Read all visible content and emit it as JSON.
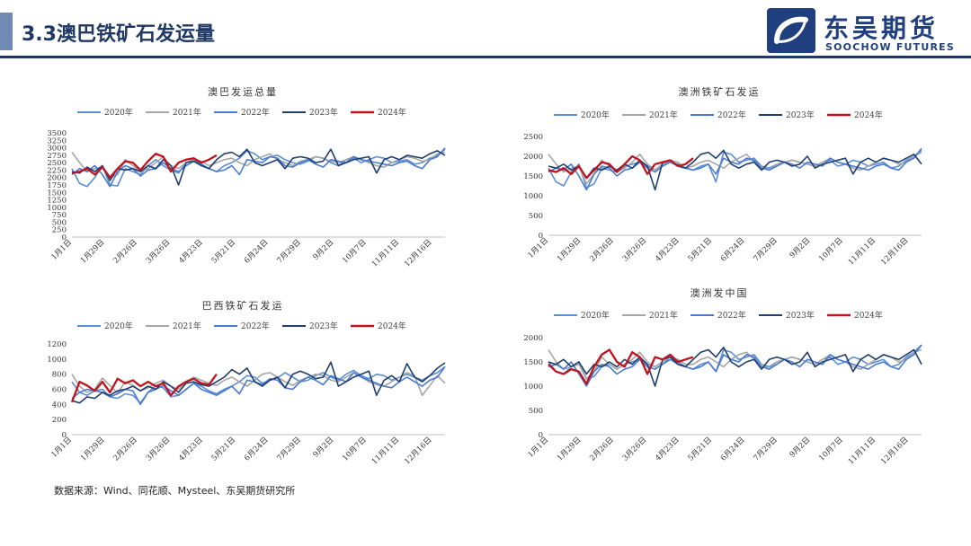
{
  "page": {
    "title": "3.3澳巴铁矿石发运量",
    "source": "数据来源：Wind、同花顺、Mysteel、东吴期货研究所"
  },
  "logo": {
    "name_cn": "东吴期货",
    "name_en": "SOOCHOW FUTURES",
    "color": "#1f3f7f"
  },
  "theme": {
    "accent": "#1f3864",
    "series_colors": {
      "2020年": "#5b8fd6",
      "2021年": "#a6a6a6",
      "2022年": "#4a7bd0",
      "2023年": "#1f3f6e",
      "2024年": "#c0141e"
    }
  },
  "chart_data": [
    {
      "type": "line",
      "title": "澳巴发运总量",
      "x_tick_labels": [
        "1月1日",
        "1月29日",
        "2月26日",
        "3月26日",
        "4月23日",
        "5月21日",
        "6月24日",
        "7月29日",
        "9月2日",
        "10月7日",
        "11月11日",
        "12月16日"
      ],
      "ylim": [
        0,
        3500
      ],
      "yticks": [
        0,
        250,
        500,
        750,
        1000,
        1250,
        1500,
        1750,
        2000,
        2250,
        2500,
        2750,
        3000,
        3250,
        3500
      ],
      "legend_position": "top",
      "series": [
        {
          "name": "2020年",
          "values": [
            2300,
            1800,
            1700,
            2000,
            2400,
            1750,
            1720,
            2300,
            2200,
            2100,
            2400,
            2600,
            2400,
            2250,
            2150,
            2500,
            2600,
            2450,
            2300,
            2200,
            2400,
            2500,
            2650,
            2900,
            2800,
            2600,
            2700,
            2750,
            2600,
            2500,
            2450,
            2550,
            2700,
            2650,
            2500,
            2400,
            2600,
            2650,
            2500,
            2600,
            2700,
            2650,
            2500,
            2550,
            2600,
            2450,
            2500,
            2650,
            2750,
            2950
          ]
        },
        {
          "name": "2021年",
          "values": [
            2850,
            2500,
            2200,
            2300,
            2350,
            2000,
            2100,
            2600,
            2400,
            2200,
            2300,
            2500,
            2700,
            2400,
            2300,
            2500,
            2600,
            2550,
            2400,
            2500,
            2600,
            2650,
            2500,
            2400,
            2600,
            2700,
            2800,
            2600,
            2500,
            2400,
            2550,
            2600,
            2700,
            2650,
            2550,
            2500,
            2600,
            2700,
            2600,
            2500,
            2400,
            2350,
            2500,
            2600,
            2700,
            2650,
            2550,
            2600,
            2800,
            2850
          ]
        },
        {
          "name": "2022年",
          "values": [
            2100,
            2300,
            2200,
            2400,
            2100,
            1700,
            2200,
            2400,
            2300,
            2050,
            2250,
            2300,
            2500,
            2300,
            2200,
            2400,
            2550,
            2450,
            2300,
            2200,
            2250,
            2400,
            2100,
            2600,
            2550,
            2500,
            2700,
            2650,
            2400,
            2350,
            2500,
            2600,
            2450,
            2350,
            2600,
            2550,
            2500,
            2700,
            2600,
            2550,
            2500,
            2450,
            2400,
            2500,
            2550,
            2400,
            2300,
            2600,
            2700,
            3000
          ]
        },
        {
          "name": "2023年",
          "values": [
            2200,
            2150,
            2350,
            2200,
            2400,
            1900,
            2300,
            2250,
            2300,
            2200,
            2400,
            2300,
            2600,
            2400,
            1750,
            2500,
            2550,
            2400,
            2300,
            2600,
            2800,
            2850,
            2700,
            2950,
            2500,
            2400,
            2500,
            2600,
            2300,
            2650,
            2700,
            2650,
            2500,
            2550,
            2950,
            2400,
            2500,
            2600,
            2650,
            2700,
            2150,
            2600,
            2700,
            2600,
            2750,
            2700,
            2650,
            2800,
            2900,
            2750
          ]
        },
        {
          "name": "2024年",
          "values": [
            2150,
            2200,
            2300,
            2100,
            2350,
            2000,
            2300,
            2550,
            2500,
            2250,
            2550,
            2800,
            2700,
            2200,
            2500,
            2600,
            2650,
            2500,
            2600,
            2750
          ]
        }
      ]
    },
    {
      "type": "line",
      "title": "澳洲铁矿石发运",
      "x_tick_labels": [
        "1月1日",
        "1月29日",
        "2月26日",
        "3月26日",
        "4月23日",
        "5月21日",
        "6月24日",
        "7月29日",
        "9月2日",
        "10月7日",
        "11月11日",
        "12月16日"
      ],
      "ylim": [
        0,
        2500
      ],
      "yticks": [
        0,
        500,
        1000,
        1500,
        2000,
        2500
      ],
      "legend_position": "top",
      "series": [
        {
          "name": "2020年",
          "values": [
            1700,
            1350,
            1250,
            1600,
            1800,
            1200,
            1300,
            1700,
            1650,
            1600,
            1750,
            1800,
            1850,
            1750,
            1650,
            1800,
            1850,
            1750,
            1700,
            1650,
            1750,
            1800,
            1350,
            2100,
            2050,
            1850,
            1900,
            1950,
            1750,
            1700,
            1800,
            1850,
            1900,
            1850,
            1800,
            1750,
            1850,
            1900,
            1750,
            1800,
            1900,
            1850,
            1750,
            1800,
            1850,
            1700,
            1750,
            1900,
            2000,
            2150
          ]
        },
        {
          "name": "2021年",
          "values": [
            2050,
            1800,
            1600,
            1700,
            1750,
            1300,
            1550,
            1900,
            1750,
            1600,
            1700,
            1850,
            2050,
            1800,
            1650,
            1800,
            1900,
            1850,
            1700,
            1750,
            1850,
            1900,
            1800,
            1700,
            1850,
            1950,
            2050,
            1850,
            1750,
            1650,
            1800,
            1850,
            1900,
            1850,
            1800,
            1750,
            1850,
            1950,
            1850,
            1800,
            1700,
            1650,
            1750,
            1850,
            1950,
            1900,
            1800,
            1850,
            2000,
            2100
          ]
        },
        {
          "name": "2022年",
          "values": [
            1600,
            1700,
            1650,
            1800,
            1500,
            1150,
            1550,
            1750,
            1700,
            1500,
            1650,
            1700,
            1850,
            1700,
            1600,
            1750,
            1850,
            1800,
            1700,
            1650,
            1700,
            1800,
            1550,
            1950,
            1850,
            1800,
            1950,
            1900,
            1700,
            1650,
            1750,
            1850,
            1800,
            1700,
            1850,
            1800,
            1750,
            1950,
            1850,
            1800,
            1750,
            1700,
            1650,
            1750,
            1800,
            1700,
            1650,
            1850,
            1950,
            2200
          ]
        },
        {
          "name": "2023年",
          "values": [
            1750,
            1700,
            1800,
            1650,
            1750,
            1450,
            1700,
            1650,
            1750,
            1650,
            1800,
            1700,
            1900,
            1750,
            1150,
            1850,
            1900,
            1750,
            1700,
            1850,
            2050,
            2100,
            1950,
            2150,
            1800,
            1700,
            1800,
            1850,
            1650,
            1850,
            1900,
            1850,
            1750,
            1800,
            2000,
            1700,
            1800,
            1850,
            1900,
            1950,
            1550,
            1850,
            1950,
            1850,
            1950,
            1900,
            1850,
            1950,
            2050,
            1800
          ]
        },
        {
          "name": "2024年",
          "values": [
            1650,
            1600,
            1700,
            1550,
            1750,
            1450,
            1650,
            1850,
            1800,
            1600,
            1800,
            2000,
            1900,
            1550,
            1800,
            1850,
            1900,
            1750,
            1800,
            1950
          ]
        }
      ]
    },
    {
      "type": "line",
      "title": "巴西铁矿石发运",
      "x_tick_labels": [
        "1月1日",
        "1月29日",
        "2月26日",
        "3月26日",
        "4月23日",
        "5月21日",
        "6月24日",
        "7月29日",
        "9月2日",
        "10月7日",
        "11月11日",
        "12月16日"
      ],
      "ylim": [
        0,
        1200
      ],
      "yticks": [
        0,
        200,
        400,
        600,
        800,
        1000,
        1200
      ],
      "legend_position": "top",
      "series": [
        {
          "name": "2020年",
          "values": [
            700,
            560,
            520,
            580,
            600,
            500,
            480,
            540,
            520,
            420,
            560,
            650,
            620,
            500,
            520,
            600,
            680,
            640,
            580,
            540,
            600,
            640,
            700,
            780,
            760,
            680,
            720,
            750,
            820,
            760,
            700,
            720,
            780,
            820,
            760,
            720,
            800,
            850,
            780,
            740,
            800,
            780,
            720,
            760,
            800,
            760,
            720,
            780,
            820,
            900
          ]
        },
        {
          "name": "2021年",
          "values": [
            800,
            640,
            560,
            600,
            750,
            650,
            550,
            700,
            650,
            580,
            620,
            680,
            720,
            640,
            600,
            700,
            760,
            720,
            680,
            650,
            720,
            760,
            700,
            640,
            720,
            800,
            820,
            760,
            700,
            650,
            720,
            760,
            800,
            780,
            720,
            700,
            760,
            820,
            760,
            700,
            660,
            640,
            700,
            760,
            820,
            780,
            520,
            650,
            780,
            680
          ]
        },
        {
          "name": "2022年",
          "values": [
            480,
            560,
            600,
            580,
            560,
            500,
            540,
            600,
            580,
            400,
            560,
            600,
            650,
            580,
            520,
            600,
            680,
            600,
            560,
            520,
            580,
            640,
            540,
            720,
            700,
            660,
            740,
            720,
            620,
            600,
            700,
            760,
            720,
            660,
            780,
            740,
            700,
            820,
            760,
            720,
            680,
            640,
            620,
            700,
            760,
            700,
            640,
            720,
            760,
            900
          ]
        },
        {
          "name": "2023年",
          "values": [
            450,
            420,
            500,
            480,
            560,
            520,
            580,
            600,
            640,
            580,
            640,
            600,
            700,
            640,
            560,
            680,
            700,
            660,
            640,
            700,
            760,
            860,
            800,
            880,
            700,
            640,
            720,
            760,
            620,
            800,
            840,
            800,
            740,
            760,
            960,
            640,
            700,
            760,
            800,
            840,
            520,
            720,
            780,
            700,
            940,
            760,
            700,
            780,
            880,
            950
          ]
        },
        {
          "name": "2024年",
          "values": [
            430,
            700,
            650,
            580,
            700,
            560,
            740,
            680,
            720,
            640,
            700,
            640,
            680,
            520,
            640,
            700,
            740,
            680,
            660,
            800
          ]
        }
      ]
    },
    {
      "type": "line",
      "title": "澳洲发中国",
      "x_tick_labels": [
        "1月1日",
        "1月29日",
        "2月26日",
        "3月26日",
        "4月23日",
        "5月21日",
        "6月24日",
        "7月29日",
        "9月2日",
        "10月7日",
        "11月11日",
        "12月16日"
      ],
      "ylim": [
        0,
        2000
      ],
      "yticks": [
        0,
        500,
        1000,
        1500,
        2000
      ],
      "legend_position": "top",
      "series": [
        {
          "name": "2020年",
          "values": [
            1500,
            1300,
            1250,
            1400,
            1500,
            1150,
            1200,
            1400,
            1450,
            1350,
            1450,
            1500,
            1550,
            1450,
            1400,
            1500,
            1550,
            1450,
            1400,
            1350,
            1450,
            1500,
            1300,
            1750,
            1700,
            1550,
            1600,
            1650,
            1450,
            1400,
            1500,
            1550,
            1600,
            1550,
            1500,
            1450,
            1550,
            1600,
            1450,
            1500,
            1600,
            1550,
            1450,
            1500,
            1550,
            1400,
            1450,
            1600,
            1700,
            1850
          ]
        },
        {
          "name": "2021年",
          "values": [
            1750,
            1500,
            1350,
            1400,
            1450,
            1150,
            1300,
            1600,
            1450,
            1350,
            1450,
            1550,
            1700,
            1500,
            1400,
            1500,
            1600,
            1550,
            1450,
            1450,
            1550,
            1600,
            1500,
            1400,
            1550,
            1650,
            1700,
            1550,
            1450,
            1350,
            1500,
            1550,
            1600,
            1550,
            1500,
            1450,
            1550,
            1650,
            1550,
            1500,
            1400,
            1350,
            1450,
            1550,
            1650,
            1600,
            1500,
            1550,
            1700,
            1750
          ]
        },
        {
          "name": "2022年",
          "values": [
            1400,
            1450,
            1350,
            1500,
            1250,
            1000,
            1300,
            1450,
            1400,
            1250,
            1350,
            1400,
            1550,
            1400,
            1350,
            1450,
            1550,
            1500,
            1400,
            1350,
            1400,
            1500,
            1300,
            1650,
            1550,
            1500,
            1650,
            1600,
            1400,
            1350,
            1450,
            1550,
            1500,
            1400,
            1550,
            1500,
            1450,
            1650,
            1550,
            1500,
            1450,
            1400,
            1350,
            1450,
            1500,
            1400,
            1350,
            1550,
            1650,
            1850
          ]
        },
        {
          "name": "2023年",
          "values": [
            1500,
            1450,
            1550,
            1400,
            1500,
            1250,
            1450,
            1400,
            1500,
            1400,
            1550,
            1450,
            1600,
            1450,
            1000,
            1550,
            1600,
            1450,
            1400,
            1550,
            1700,
            1750,
            1600,
            1800,
            1500,
            1400,
            1500,
            1550,
            1350,
            1550,
            1600,
            1550,
            1450,
            1500,
            1700,
            1400,
            1500,
            1550,
            1600,
            1650,
            1300,
            1550,
            1650,
            1550,
            1650,
            1600,
            1550,
            1650,
            1750,
            1450
          ]
        },
        {
          "name": "2024年",
          "values": [
            1450,
            1300,
            1250,
            1350,
            1300,
            1050,
            1400,
            1650,
            1750,
            1500,
            1400,
            1700,
            1600,
            1250,
            1600,
            1550,
            1650,
            1500,
            1550,
            1600
          ]
        }
      ]
    }
  ]
}
